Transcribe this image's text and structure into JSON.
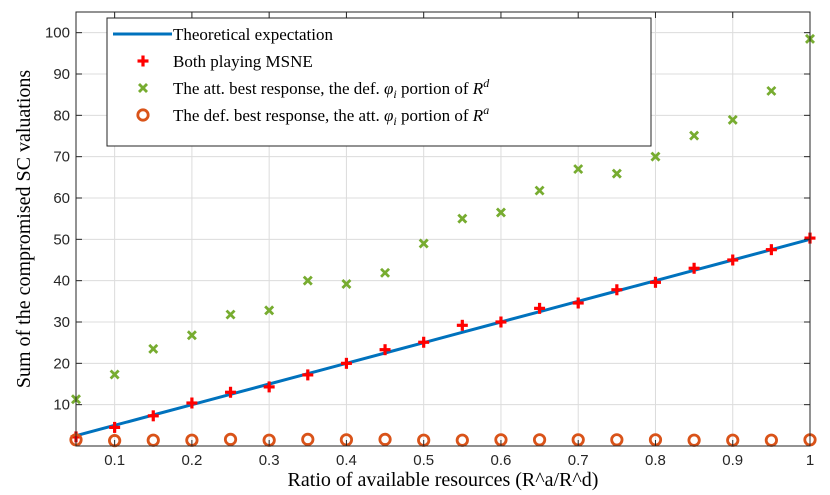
{
  "chart_data": {
    "type": "line",
    "xlabel": "Ratio of available resources (R^a/R^d)",
    "ylabel": "Sum of the compromised SC valuations",
    "xlim": [
      0.05,
      1.0
    ],
    "ylim": [
      0,
      105
    ],
    "grid": true,
    "x_ticks": [
      0.1,
      0.2,
      0.3,
      0.4,
      0.5,
      0.6,
      0.7,
      0.8,
      0.9,
      1
    ],
    "x_tick_labels": [
      "0.1",
      "0.2",
      "0.3",
      "0.4",
      "0.5",
      "0.6",
      "0.7",
      "0.8",
      "0.9",
      "1"
    ],
    "y_ticks": [
      10,
      20,
      30,
      40,
      50,
      60,
      70,
      80,
      90,
      100
    ],
    "y_tick_labels": [
      "10",
      "20",
      "30",
      "40",
      "50",
      "60",
      "70",
      "80",
      "90",
      "100"
    ],
    "legend_position": "top-left",
    "x": [
      0.05,
      0.1,
      0.15,
      0.2,
      0.25,
      0.3,
      0.35,
      0.4,
      0.45,
      0.5,
      0.55,
      0.6,
      0.65,
      0.7,
      0.75,
      0.8,
      0.85,
      0.9,
      0.95,
      1.0
    ],
    "series": [
      {
        "name": "Theoretical expectation",
        "marker": "line",
        "color": "#0072bd",
        "values": [
          2.5,
          5,
          7.5,
          10,
          12.5,
          15,
          17.5,
          20,
          22.5,
          25,
          27.5,
          30,
          32.5,
          35,
          37.5,
          40,
          42.5,
          45,
          47.5,
          50
        ]
      },
      {
        "name": "Both playing MSNE",
        "marker": "plus",
        "color": "#ff0000",
        "values": [
          2.2,
          4.5,
          7.3,
          10.4,
          13.0,
          14.3,
          17.2,
          20.0,
          23.3,
          25.1,
          29.2,
          30.0,
          33.3,
          34.6,
          37.8,
          39.6,
          43.0,
          45.0,
          47.5,
          50.3
        ]
      },
      {
        "name": "The att. best response, the def. φ_i portion of R^d",
        "marker": "x",
        "color": "#77ac30",
        "values": [
          11.3,
          17.3,
          23.5,
          26.8,
          31.8,
          32.8,
          40.0,
          39.2,
          41.9,
          49.0,
          55.0,
          56.5,
          61.8,
          67.0,
          65.9,
          70.0,
          75.1,
          78.9,
          85.9,
          98.5
        ]
      },
      {
        "name": "The def. best response, the att. φ_i portion of R^a",
        "marker": "circle",
        "color": "#d95319",
        "values": [
          1.5,
          1.3,
          1.4,
          1.4,
          1.6,
          1.4,
          1.6,
          1.5,
          1.6,
          1.4,
          1.4,
          1.5,
          1.5,
          1.5,
          1.5,
          1.5,
          1.4,
          1.4,
          1.4,
          1.5
        ]
      }
    ]
  }
}
